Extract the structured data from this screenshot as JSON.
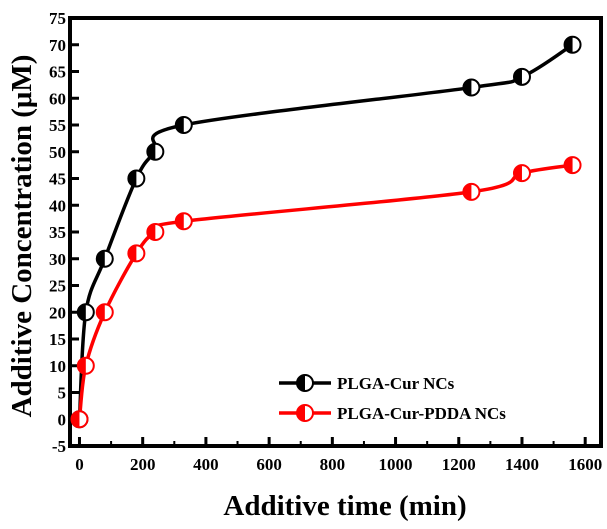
{
  "chart_data": {
    "type": "line",
    "xlabel": "Additive time (min)",
    "ylabel": "Additive Concentration (μM)",
    "xlim": [
      -30,
      1650
    ],
    "ylim": [
      -5,
      75
    ],
    "xticks": [
      0,
      200,
      400,
      600,
      800,
      1000,
      1200,
      1400,
      1600
    ],
    "yticks": [
      -5,
      0,
      5,
      10,
      15,
      20,
      25,
      30,
      35,
      40,
      45,
      50,
      55,
      60,
      65,
      70,
      75
    ],
    "grid": false,
    "legend_position": "bottom-right",
    "series": [
      {
        "name": "PLGA-Cur NCs",
        "color": "#000000",
        "x": [
          0,
          20,
          80,
          180,
          240,
          330,
          1240,
          1400,
          1560
        ],
        "y": [
          0,
          20,
          30,
          45,
          50,
          55,
          62,
          64,
          70
        ]
      },
      {
        "name": "PLGA-Cur-PDDA NCs",
        "color": "#ff0000",
        "x": [
          0,
          20,
          80,
          180,
          240,
          330,
          1240,
          1400,
          1560
        ],
        "y": [
          0,
          10,
          20,
          31,
          35,
          37,
          42.5,
          46,
          47.5
        ]
      }
    ]
  }
}
